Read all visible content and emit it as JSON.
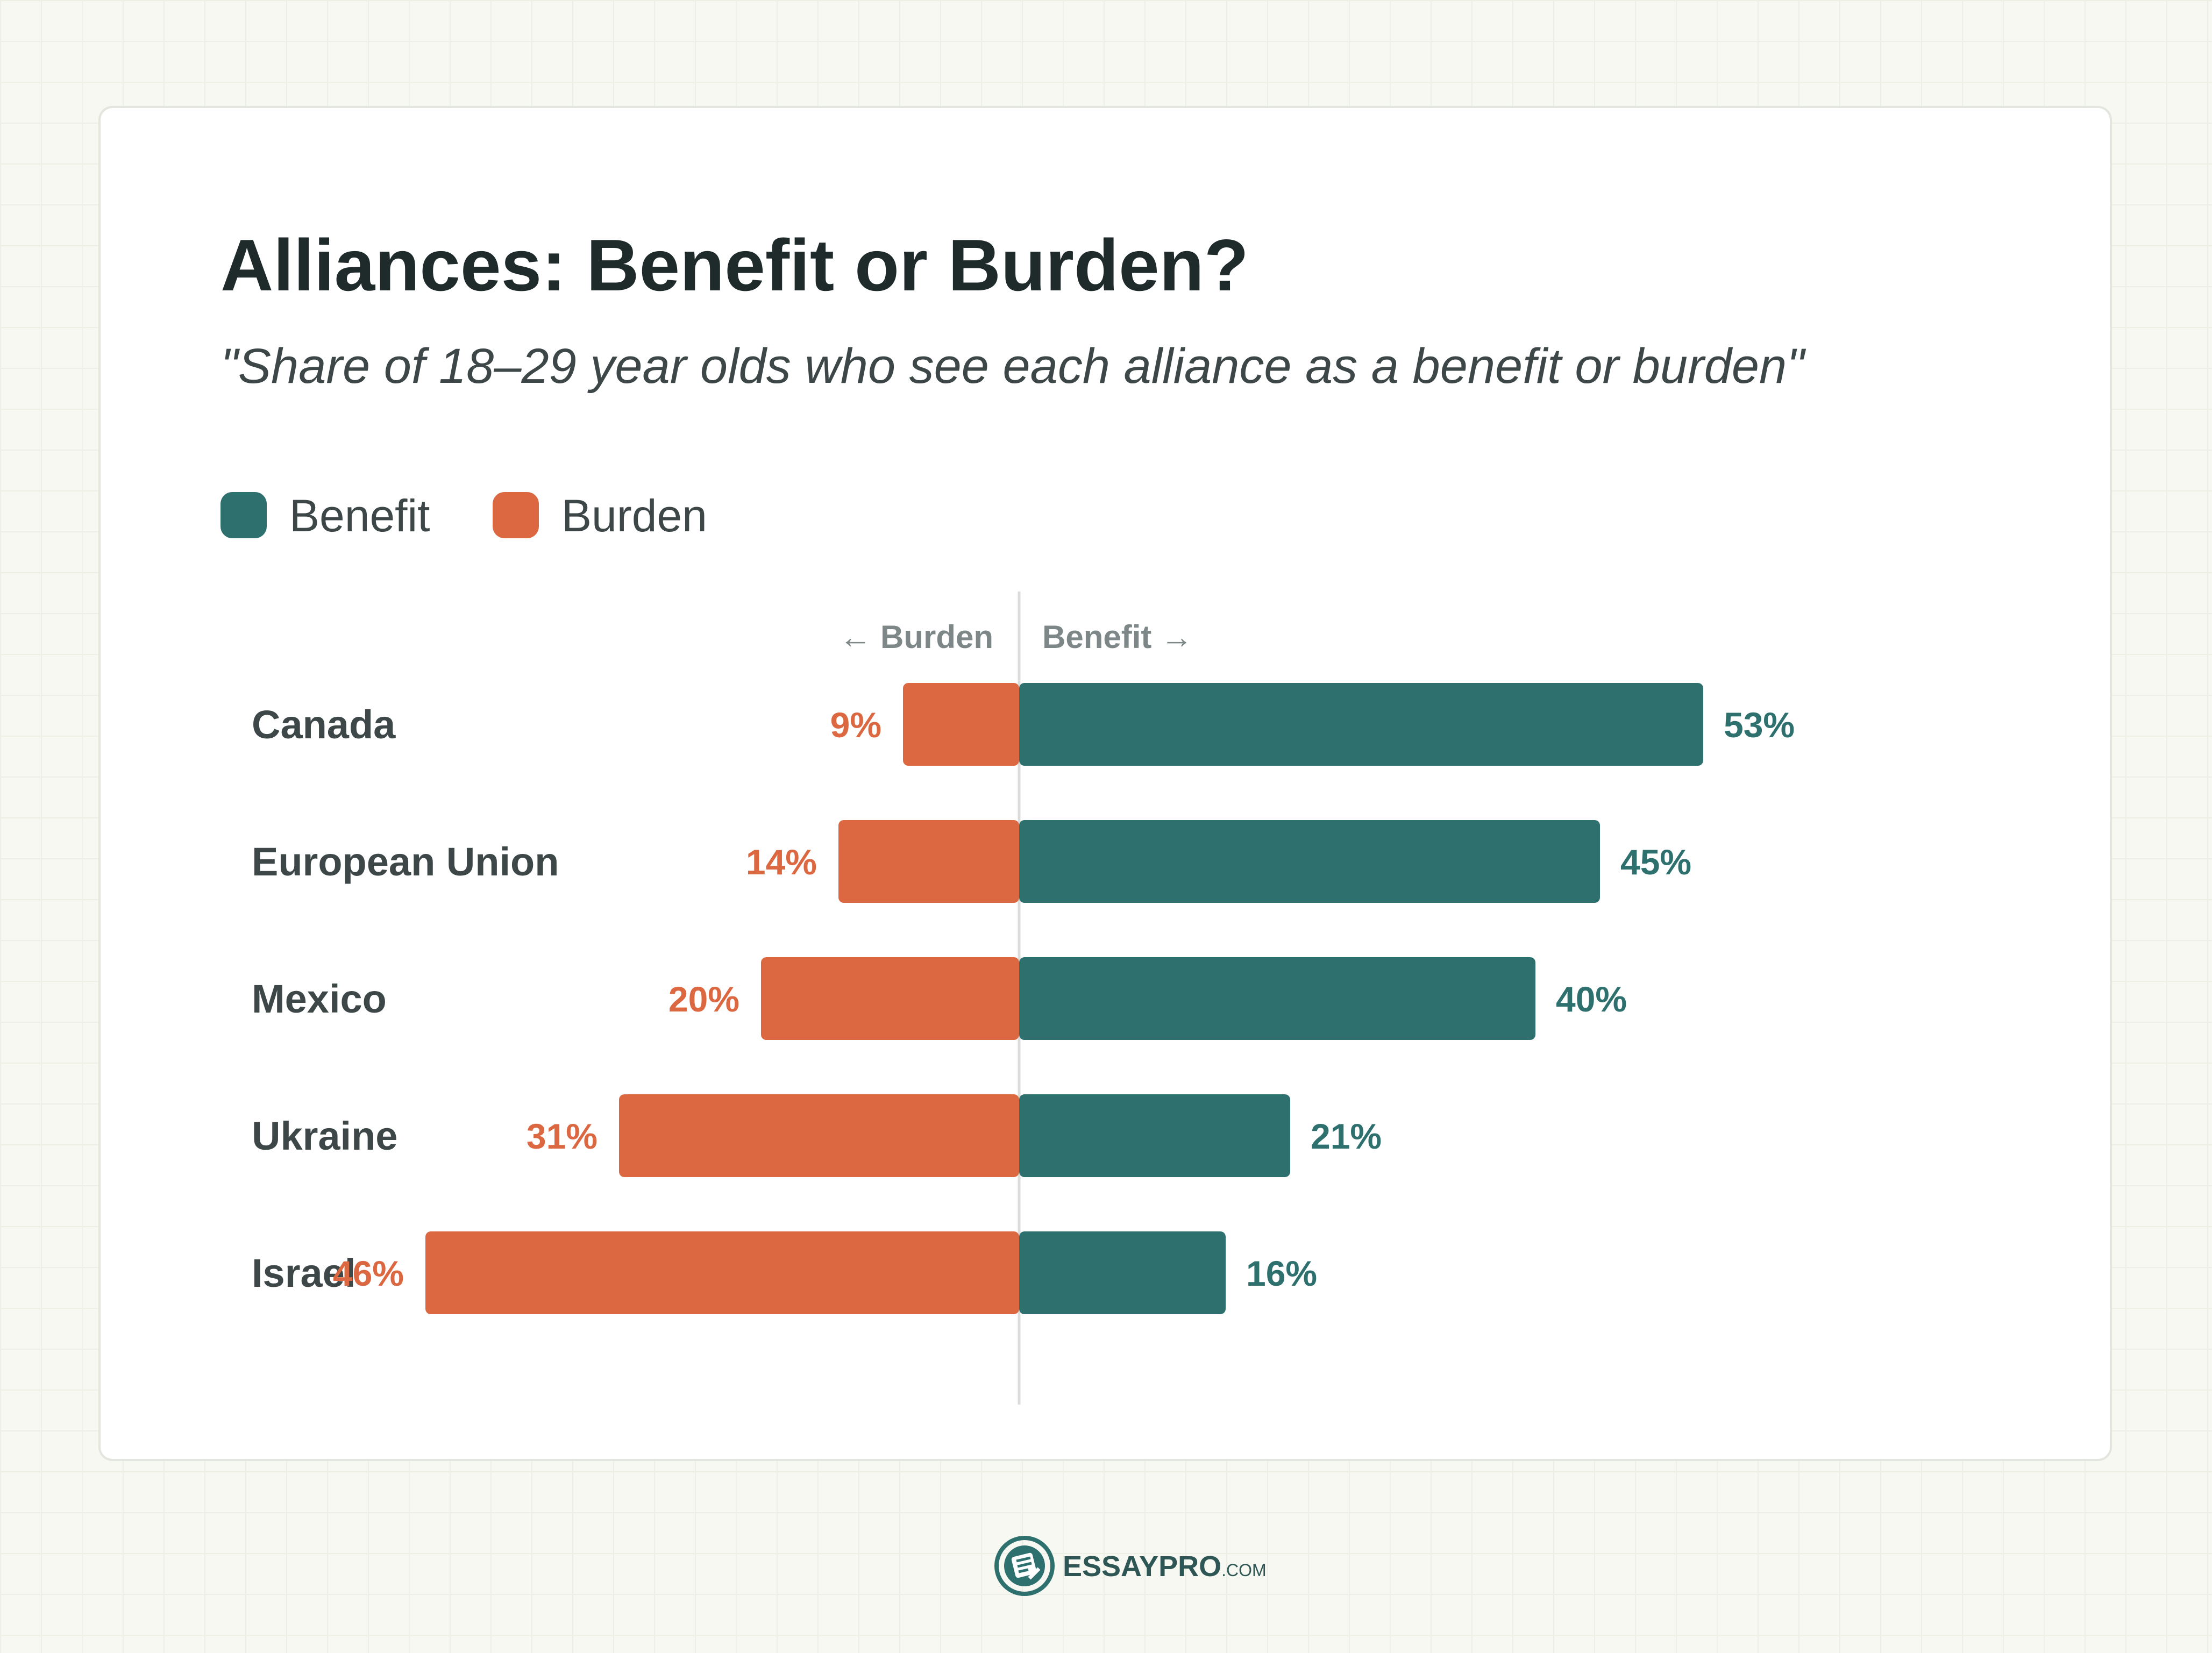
{
  "chart_data": {
    "type": "bar",
    "orientation": "horizontal-diverging",
    "title": "Alliances: Benefit or Burden?",
    "subtitle": "\"Share of 18–29 year olds who see each alliance as a benefit or burden\"",
    "legend": [
      {
        "name": "Benefit",
        "color": "#2e706e"
      },
      {
        "name": "Burden",
        "color": "#db6841"
      }
    ],
    "direction_labels": {
      "left": "← Burden",
      "right": "Benefit →"
    },
    "categories": [
      "Canada",
      "European Union",
      "Mexico",
      "Ukraine",
      "Israel"
    ],
    "series": [
      {
        "name": "Benefit",
        "values": [
          53,
          45,
          40,
          21,
          16
        ],
        "labels": [
          "53%",
          "45%",
          "40%",
          "21%",
          "16%"
        ],
        "color": "#2e706e"
      },
      {
        "name": "Burden",
        "values": [
          9,
          14,
          20,
          31,
          46
        ],
        "labels": [
          "9%",
          "14%",
          "20%",
          "31%",
          "46%"
        ],
        "color": "#db6841"
      }
    ],
    "value_unit": "%",
    "grid": false,
    "legend_position": "top-left"
  },
  "footer": {
    "brand_main": "ESSAYPRO",
    "brand_suffix": ".COM",
    "icon": "document-pen-icon"
  },
  "colors": {
    "benefit": "#2e706e",
    "burden": "#db6841",
    "title": "#1f2a2a",
    "text": "#3d4747",
    "axis_label": "#7d8787",
    "center_line": "#d9dcd8"
  }
}
